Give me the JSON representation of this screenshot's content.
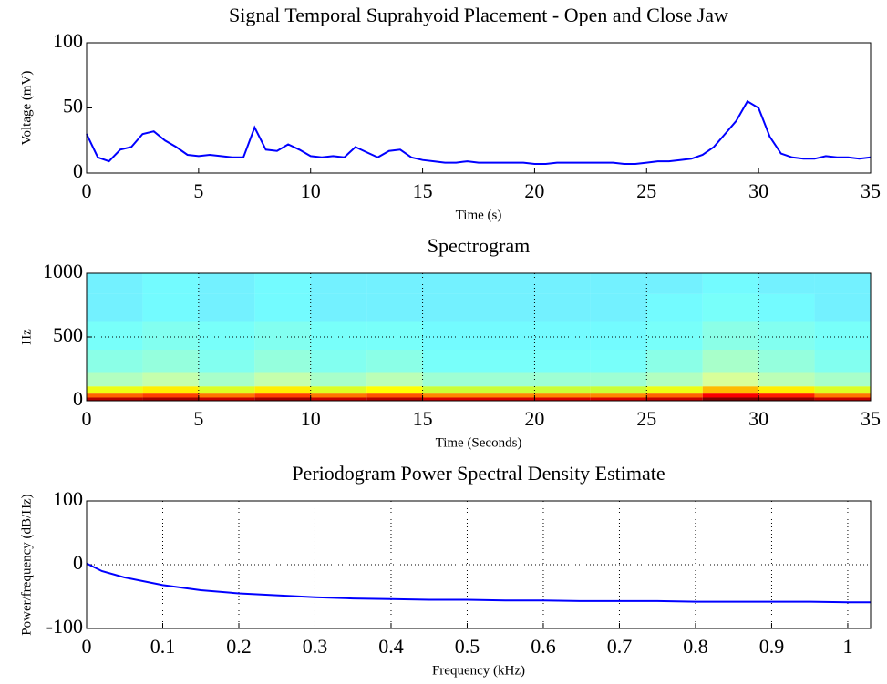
{
  "chart_data": [
    {
      "type": "line",
      "title": "Signal Temporal Suprahyoid Placement - Open and Close Jaw",
      "xlabel": "Time (s)",
      "ylabel": "Voltage (mV)",
      "xlim": [
        0,
        35
      ],
      "ylim": [
        0,
        100
      ],
      "xticks": [
        0,
        5,
        10,
        15,
        20,
        25,
        30,
        35
      ],
      "yticks": [
        0,
        50,
        100
      ],
      "grid": false,
      "series": [
        {
          "color": "#0000ff",
          "x": [
            0,
            0.5,
            1,
            1.5,
            2,
            2.5,
            3,
            3.5,
            4,
            4.5,
            5,
            5.5,
            6,
            6.5,
            7,
            7.5,
            8,
            8.5,
            9,
            9.5,
            10,
            10.5,
            11,
            11.5,
            12,
            12.5,
            13,
            13.5,
            14,
            14.5,
            15,
            15.5,
            16,
            16.5,
            17,
            17.5,
            18,
            18.5,
            19,
            19.5,
            20,
            20.5,
            21,
            21.5,
            22,
            22.5,
            23,
            23.5,
            24,
            24.5,
            25,
            25.5,
            26,
            26.5,
            27,
            27.5,
            28,
            28.5,
            29,
            29.5,
            30,
            30.5,
            31,
            31.5,
            32,
            32.5,
            33,
            33.5,
            34,
            34.5,
            35
          ],
          "values": [
            30,
            12,
            9,
            18,
            20,
            30,
            32,
            25,
            20,
            14,
            13,
            14,
            13,
            12,
            12,
            35,
            18,
            17,
            22,
            18,
            13,
            12,
            13,
            12,
            20,
            16,
            12,
            17,
            18,
            12,
            10,
            9,
            8,
            8,
            9,
            8,
            8,
            8,
            8,
            8,
            7,
            7,
            8,
            8,
            8,
            8,
            8,
            8,
            7,
            7,
            8,
            9,
            9,
            10,
            11,
            14,
            20,
            30,
            40,
            55,
            50,
            28,
            15,
            12,
            11,
            11,
            13,
            12,
            12,
            11,
            12
          ]
        }
      ]
    },
    {
      "type": "heatmap",
      "title": "Spectrogram",
      "xlabel": "Time (Seconds)",
      "ylabel": "Hz",
      "xlim": [
        0,
        35
      ],
      "ylim": [
        0,
        1000
      ],
      "xticks": [
        0,
        5,
        10,
        15,
        20,
        25,
        30,
        35
      ],
      "yticks": [
        0,
        500,
        1000
      ],
      "grid": true,
      "x": [
        1.25,
        3.75,
        6.25,
        8.75,
        11.25,
        13.75,
        16.25,
        18.75,
        21.25,
        23.75,
        26.25,
        28.75,
        31.25,
        33.75
      ],
      "y": [
        12.5,
        37.5,
        75,
        150,
        300,
        500,
        750,
        925
      ],
      "z": [
        [
          -5,
          -4,
          -6,
          -4,
          -6,
          -5,
          -7,
          -7,
          -7,
          -7,
          -6,
          -2,
          -3,
          -6
        ],
        [
          -15,
          -13,
          -16,
          -13,
          -16,
          -14,
          -17,
          -17,
          -17,
          -17,
          -15,
          -9,
          -11,
          -16
        ],
        [
          -25,
          -23,
          -26,
          -23,
          -26,
          -24,
          -27,
          -27,
          -27,
          -27,
          -25,
          -20,
          -23,
          -26
        ],
        [
          -32,
          -30,
          -33,
          -30,
          -33,
          -31,
          -34,
          -34,
          -34,
          -34,
          -32,
          -28,
          -31,
          -33
        ],
        [
          -36,
          -35,
          -37,
          -35,
          -37,
          -36,
          -38,
          -38,
          -38,
          -38,
          -36,
          -33,
          -35,
          -37
        ],
        [
          -38,
          -37,
          -38,
          -37,
          -38,
          -38,
          -39,
          -39,
          -39,
          -39,
          -38,
          -36,
          -37,
          -38
        ],
        [
          -40,
          -39,
          -40,
          -39,
          -40,
          -40,
          -40,
          -40,
          -40,
          -40,
          -39,
          -38,
          -39,
          -40
        ],
        [
          -40,
          -39,
          -40,
          -39,
          -40,
          -40,
          -40,
          -40,
          -40,
          -40,
          -40,
          -39,
          -40,
          -40
        ]
      ]
    },
    {
      "type": "line",
      "title": "Periodogram Power Spectral Density Estimate",
      "xlabel": "Frequency (kHz)",
      "ylabel": "Power/frequency (dB/Hz)",
      "xlim": [
        0,
        1.03
      ],
      "ylim": [
        -100,
        100
      ],
      "xticks": [
        0,
        0.1,
        0.2,
        0.3,
        0.4,
        0.5,
        0.6,
        0.7,
        0.8,
        0.9,
        1
      ],
      "yticks": [
        -100,
        0,
        100
      ],
      "grid": true,
      "series": [
        {
          "color": "#0000ff",
          "x": [
            0,
            0.02,
            0.05,
            0.1,
            0.15,
            0.2,
            0.25,
            0.3,
            0.35,
            0.4,
            0.45,
            0.5,
            0.55,
            0.6,
            0.65,
            0.7,
            0.75,
            0.8,
            0.85,
            0.9,
            0.95,
            1,
            1.03
          ],
          "values": [
            2,
            -10,
            -20,
            -32,
            -40,
            -45,
            -48,
            -51,
            -53,
            -54,
            -55,
            -55,
            -56,
            -56,
            -57,
            -57,
            -57,
            -58,
            -58,
            -58,
            -58,
            -59,
            -59
          ]
        }
      ]
    }
  ]
}
